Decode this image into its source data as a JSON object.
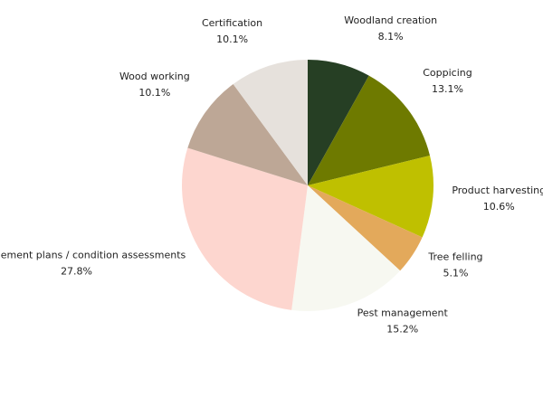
{
  "chart_data": {
    "type": "pie",
    "categories": [
      "Woodland creation",
      "Coppicing",
      "Product harvesting",
      "Tree felling",
      "Pest management",
      "Management plans / condition assessments",
      "Wood working",
      "Certification"
    ],
    "values": [
      8.1,
      13.1,
      10.6,
      5.1,
      15.2,
      27.8,
      10.1,
      10.1
    ],
    "value_labels": [
      "8.1%",
      "13.1%",
      "10.6%",
      "5.1%",
      "15.2%",
      "27.8%",
      "10.1%",
      "10.1%"
    ],
    "colors": [
      "#263f24",
      "#6e7a00",
      "#bfc000",
      "#e3a95b",
      "#f7f8f1",
      "#fdd6cf",
      "#bda796",
      "#e6e1dc"
    ]
  }
}
